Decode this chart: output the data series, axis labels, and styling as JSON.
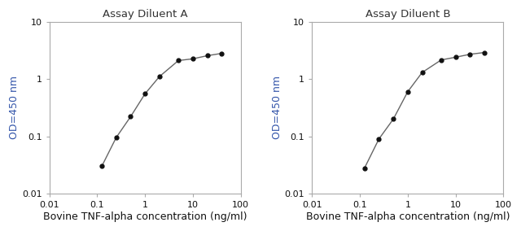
{
  "panel_A": {
    "title": "Assay Diluent A",
    "x": [
      0.125,
      0.25,
      0.5,
      1.0,
      2.0,
      5.0,
      10.0,
      20.0,
      40.0
    ],
    "y": [
      0.03,
      0.095,
      0.22,
      0.55,
      1.1,
      2.1,
      2.25,
      2.55,
      2.8
    ]
  },
  "panel_B": {
    "title": "Assay Diluent B",
    "x": [
      0.125,
      0.25,
      0.5,
      1.0,
      2.0,
      5.0,
      10.0,
      20.0,
      40.0
    ],
    "y": [
      0.028,
      0.09,
      0.2,
      0.6,
      1.3,
      2.15,
      2.4,
      2.7,
      2.9
    ]
  },
  "xlabel": "Bovine TNF-alpha concentration (ng/ml)",
  "ylabel": "OD=450 nm",
  "xlim": [
    0.01,
    100
  ],
  "ylim": [
    0.01,
    10
  ],
  "line_color": "#666666",
  "marker_color": "#111111",
  "spine_color": "#aaaaaa",
  "title_color": "#333333",
  "ylabel_color": "#3355aa",
  "xlabel_color": "#111111",
  "tick_label_color": "#111111",
  "bg_color": "#ffffff",
  "title_fontsize": 9.5,
  "label_fontsize": 9,
  "tick_fontsize": 8
}
